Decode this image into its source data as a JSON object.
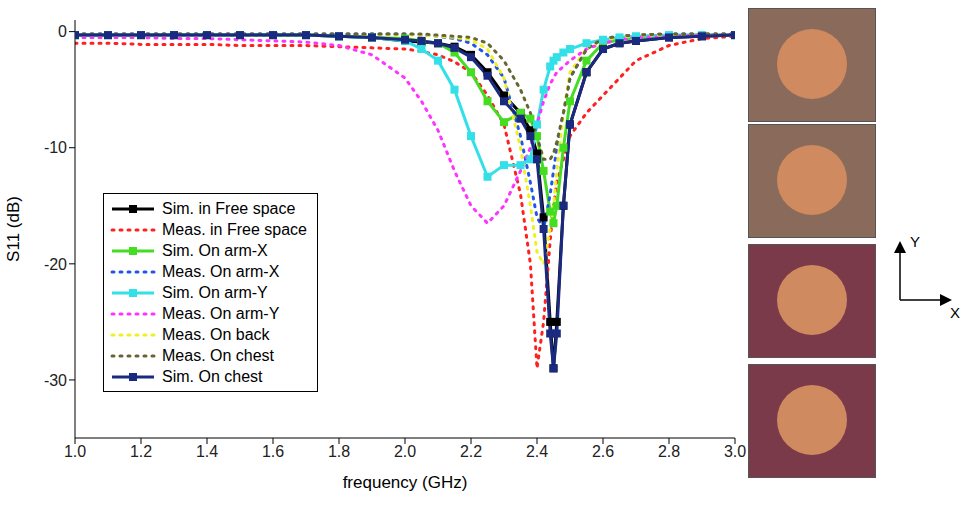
{
  "chart_data": {
    "type": "line",
    "x_label": "frequency (GHz)",
    "y_label": "S11 (dB)",
    "x": [
      1.0,
      1.1,
      1.2,
      1.3,
      1.4,
      1.5,
      1.6,
      1.7,
      1.8,
      1.9,
      2.0,
      2.05,
      2.1,
      2.15,
      2.2,
      2.25,
      2.3,
      2.35,
      2.38,
      2.4,
      2.42,
      2.44,
      2.45,
      2.46,
      2.48,
      2.5,
      2.55,
      2.6,
      2.65,
      2.7,
      2.8,
      2.9,
      3.0
    ],
    "xlim": [
      1,
      3
    ],
    "xticks": [
      {
        "value": 1,
        "label": "1.0"
      },
      {
        "value": 1.2,
        "label": "1.2"
      },
      {
        "value": 1.4,
        "label": "1.4"
      },
      {
        "value": 1.6,
        "label": "1.6"
      },
      {
        "value": 1.8,
        "label": "1.8"
      },
      {
        "value": 2,
        "label": "2.0"
      },
      {
        "value": 2.2,
        "label": "2.2"
      },
      {
        "value": 2.4,
        "label": "2.4"
      },
      {
        "value": 2.6,
        "label": "2.6"
      },
      {
        "value": 2.8,
        "label": "2.8"
      },
      {
        "value": 3,
        "label": "3.0"
      }
    ],
    "ylim": [
      -35,
      1
    ],
    "yticks": [
      0,
      -10,
      -20,
      -30
    ],
    "grid": false,
    "legend": "lower left",
    "series": [
      {
        "name": "Sim. in Free space",
        "color": "#000000",
        "marker": "square",
        "line_style": "solid",
        "values": [
          -0.3,
          -0.3,
          -0.3,
          -0.3,
          -0.3,
          -0.3,
          -0.3,
          -0.3,
          -0.4,
          -0.5,
          -0.8,
          -0.9,
          -1.0,
          -1.3,
          -2.0,
          -3.5,
          -5.5,
          -7.0,
          -8.5,
          -10.5,
          -16,
          -25,
          -29,
          -25,
          -15,
          -8,
          -3.5,
          -1.5,
          -1.0,
          -0.8,
          -0.5,
          -0.4,
          -0.3
        ]
      },
      {
        "name": "Meas. in Free space",
        "color": "#ff2020",
        "marker": "none",
        "line_style": "dotted",
        "values": [
          -1.0,
          -1.0,
          -1.1,
          -1.1,
          -1.1,
          -1.2,
          -1.2,
          -1.2,
          -1.3,
          -1.4,
          -1.5,
          -1.7,
          -2.0,
          -2.6,
          -3.5,
          -5.5,
          -8,
          -14,
          -20,
          -29,
          -25,
          -18,
          -15,
          -13,
          -11,
          -9,
          -7,
          -5.5,
          -4,
          -2.5,
          -1.2,
          -0.6,
          -0.4
        ]
      },
      {
        "name": "Sim. On arm-X",
        "color": "#44dd22",
        "marker": "square",
        "line_style": "solid",
        "values": [
          -0.3,
          -0.3,
          -0.3,
          -0.3,
          -0.3,
          -0.3,
          -0.3,
          -0.3,
          -0.4,
          -0.5,
          -0.6,
          -0.8,
          -1.0,
          -1.8,
          -3.5,
          -6,
          -7.8,
          -7,
          -7.5,
          -9,
          -12,
          -15.5,
          -16.5,
          -15,
          -10,
          -6,
          -2.5,
          -1,
          -0.7,
          -0.5,
          -0.4,
          -0.3,
          -0.3
        ]
      },
      {
        "name": "Meas. On arm-X",
        "color": "#2255ee",
        "marker": "none",
        "line_style": "dotted",
        "values": [
          -0.2,
          -0.2,
          -0.2,
          -0.2,
          -0.2,
          -0.2,
          -0.2,
          -0.2,
          -0.2,
          -0.2,
          -0.2,
          -0.3,
          -0.4,
          -0.6,
          -1.0,
          -2,
          -4,
          -9,
          -13,
          -16,
          -17,
          -14,
          -12,
          -10,
          -7,
          -4,
          -1.5,
          -0.6,
          -0.4,
          -0.3,
          -0.2,
          -0.2,
          -0.2
        ]
      },
      {
        "name": "Sim. On arm-Y",
        "color": "#33e0e8",
        "marker": "square",
        "line_style": "solid",
        "values": [
          -0.3,
          -0.3,
          -0.3,
          -0.3,
          -0.3,
          -0.3,
          -0.3,
          -0.3,
          -0.4,
          -0.5,
          -0.8,
          -1.5,
          -2.5,
          -5,
          -9,
          -12.5,
          -11.5,
          -11.5,
          -11,
          -8,
          -5,
          -3,
          -2.5,
          -2.2,
          -1.8,
          -1.5,
          -1.0,
          -0.7,
          -0.5,
          -0.4,
          -0.3,
          -0.3,
          -0.3
        ]
      },
      {
        "name": "Meas. On arm-Y",
        "color": "#ff33ff",
        "marker": "none",
        "line_style": "dotted",
        "values": [
          -0.5,
          -0.5,
          -0.5,
          -0.6,
          -0.6,
          -0.7,
          -0.8,
          -0.9,
          -1.2,
          -2,
          -4,
          -6,
          -8.5,
          -12,
          -15,
          -16.5,
          -15,
          -12,
          -10,
          -8,
          -6,
          -4.5,
          -4,
          -3.5,
          -3,
          -2.5,
          -1.5,
          -1,
          -0.7,
          -0.5,
          -0.4,
          -0.3,
          -0.3
        ]
      },
      {
        "name": "Meas. On back",
        "color": "#f0f020",
        "marker": "none",
        "line_style": "dotted",
        "values": [
          -0.3,
          -0.3,
          -0.3,
          -0.3,
          -0.3,
          -0.3,
          -0.3,
          -0.3,
          -0.3,
          -0.3,
          -0.3,
          -0.3,
          -0.4,
          -0.5,
          -0.7,
          -1.5,
          -4,
          -10,
          -15,
          -19,
          -20,
          -17,
          -15,
          -12,
          -7,
          -3.5,
          -1.5,
          -0.7,
          -0.5,
          -0.3,
          -0.3,
          -0.3,
          -0.3
        ]
      },
      {
        "name": "Meas. On chest",
        "color": "#666633",
        "marker": "none",
        "line_style": "dotted",
        "values": [
          -0.2,
          -0.2,
          -0.2,
          -0.2,
          -0.2,
          -0.2,
          -0.2,
          -0.2,
          -0.2,
          -0.2,
          -0.2,
          -0.2,
          -0.3,
          -0.4,
          -0.5,
          -1,
          -2.5,
          -5,
          -7,
          -9,
          -11,
          -11,
          -10.5,
          -9.5,
          -7,
          -4,
          -1.5,
          -0.6,
          -0.4,
          -0.3,
          -0.2,
          -0.2,
          -0.2
        ]
      },
      {
        "name": "Sim. On chest",
        "color": "#1a2a80",
        "marker": "square",
        "line_style": "solid",
        "values": [
          -0.3,
          -0.3,
          -0.3,
          -0.3,
          -0.3,
          -0.3,
          -0.3,
          -0.3,
          -0.4,
          -0.5,
          -0.7,
          -0.8,
          -1.0,
          -1.4,
          -2.2,
          -3.8,
          -6.0,
          -7.5,
          -9.0,
          -11.0,
          -17,
          -26,
          -29,
          -26,
          -15,
          -8,
          -3.5,
          -1.5,
          -1.0,
          -0.8,
          -0.5,
          -0.4,
          -0.3
        ]
      }
    ]
  },
  "inset_axes": {
    "y": "Y",
    "x": "X"
  }
}
